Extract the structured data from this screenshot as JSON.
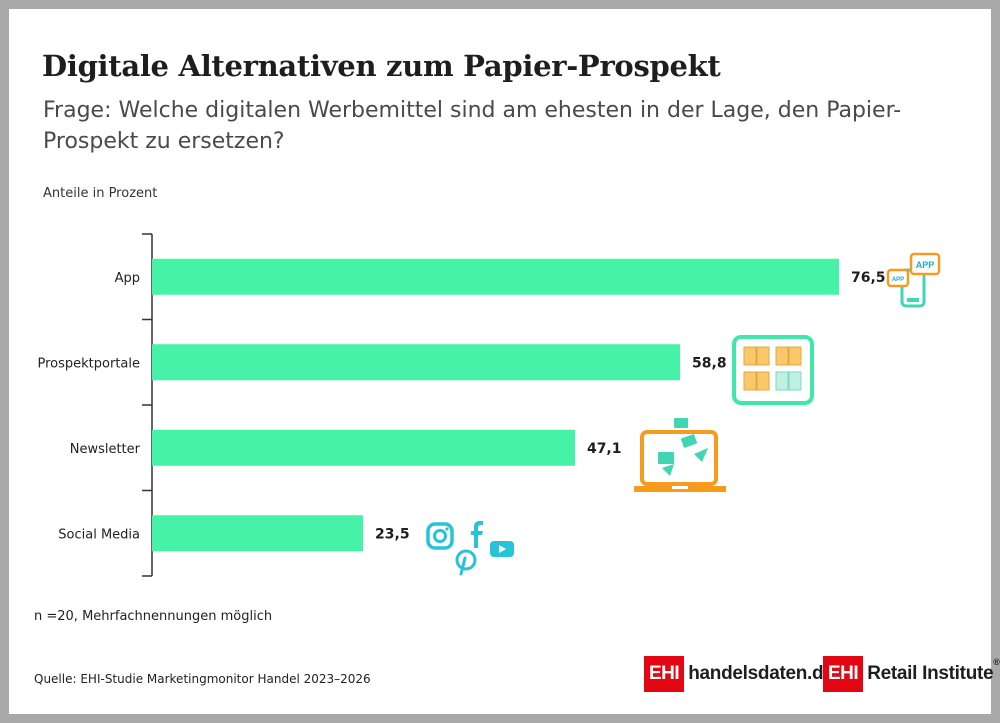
{
  "title": "Digitale Alternativen zum Papier-Prospekt",
  "subtitle": "Frage: Welche digitalen Werbemittel sind am ehesten in der Lage, den Papier-Prospekt zu ersetzen?",
  "unit_label": "Anteile in Prozent",
  "note": "n =20, Mehrfachnennungen möglich",
  "source": "Quelle: EHI-Studie Marketingmonitor Handel 2023–2026",
  "logos": {
    "handelsdaten": {
      "box": "EHI",
      "text": "handelsdaten.de"
    },
    "retail": {
      "box": "EHI",
      "text": "Retail Institute",
      "mark": "®"
    }
  },
  "icon_labels": {
    "app_large": "APP",
    "app_small": "APP"
  },
  "colors": {
    "bar": "#45f2a8",
    "icon_orange": "#f59b1e",
    "icon_teal": "#3fd6b6",
    "icon_cyan": "#27c3d6"
  },
  "chart_data": {
    "type": "bar",
    "orientation": "horizontal",
    "categories": [
      "App",
      "Prospektportale",
      "Newsletter",
      "Social Media"
    ],
    "values": [
      76.5,
      58.8,
      47.1,
      23.5
    ],
    "value_labels": [
      "76,5",
      "58,8",
      "47,1",
      "23,5"
    ],
    "xlim": [
      0,
      100
    ],
    "grid": false,
    "icons": [
      "app-icon",
      "brochure-portal-icon",
      "newsletter-icon",
      "social-media-icon"
    ]
  }
}
